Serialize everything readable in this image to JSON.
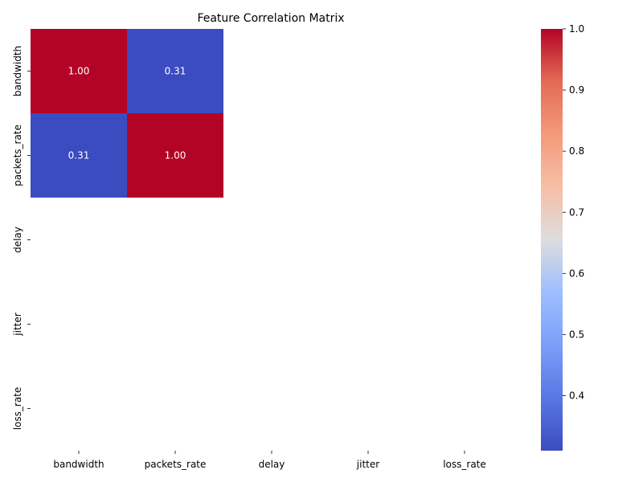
{
  "chart_data": {
    "type": "heatmap",
    "title": "Feature Correlation Matrix",
    "x_labels": [
      "bandwidth",
      "packets_rate",
      "delay",
      "jitter",
      "loss_rate"
    ],
    "y_labels": [
      "bandwidth",
      "packets_rate",
      "delay",
      "jitter",
      "loss_rate"
    ],
    "values": [
      [
        1.0,
        0.31,
        null,
        null,
        null
      ],
      [
        0.31,
        1.0,
        null,
        null,
        null
      ],
      [
        null,
        null,
        null,
        null,
        null
      ],
      [
        null,
        null,
        null,
        null,
        null
      ],
      [
        null,
        null,
        null,
        null,
        null
      ]
    ],
    "annotations": [
      [
        "1.00",
        "0.31",
        "",
        "",
        ""
      ],
      [
        "0.31",
        "1.00",
        "",
        "",
        ""
      ],
      [
        "",
        "",
        "",
        "",
        ""
      ],
      [
        "",
        "",
        "",
        "",
        ""
      ],
      [
        "",
        "",
        "",
        "",
        ""
      ]
    ],
    "colormap": "coolwarm",
    "colors": {
      "low": "#3b4cc0",
      "mid": "#dddddd",
      "high": "#b40426"
    },
    "colorbar": {
      "range": [
        0.31,
        1.0
      ],
      "ticks": [
        0.4,
        0.5,
        0.6,
        0.7,
        0.8,
        0.9,
        1.0
      ],
      "tick_labels": [
        "0.4",
        "0.5",
        "0.6",
        "0.7",
        "0.8",
        "0.9",
        "1.0"
      ]
    }
  }
}
